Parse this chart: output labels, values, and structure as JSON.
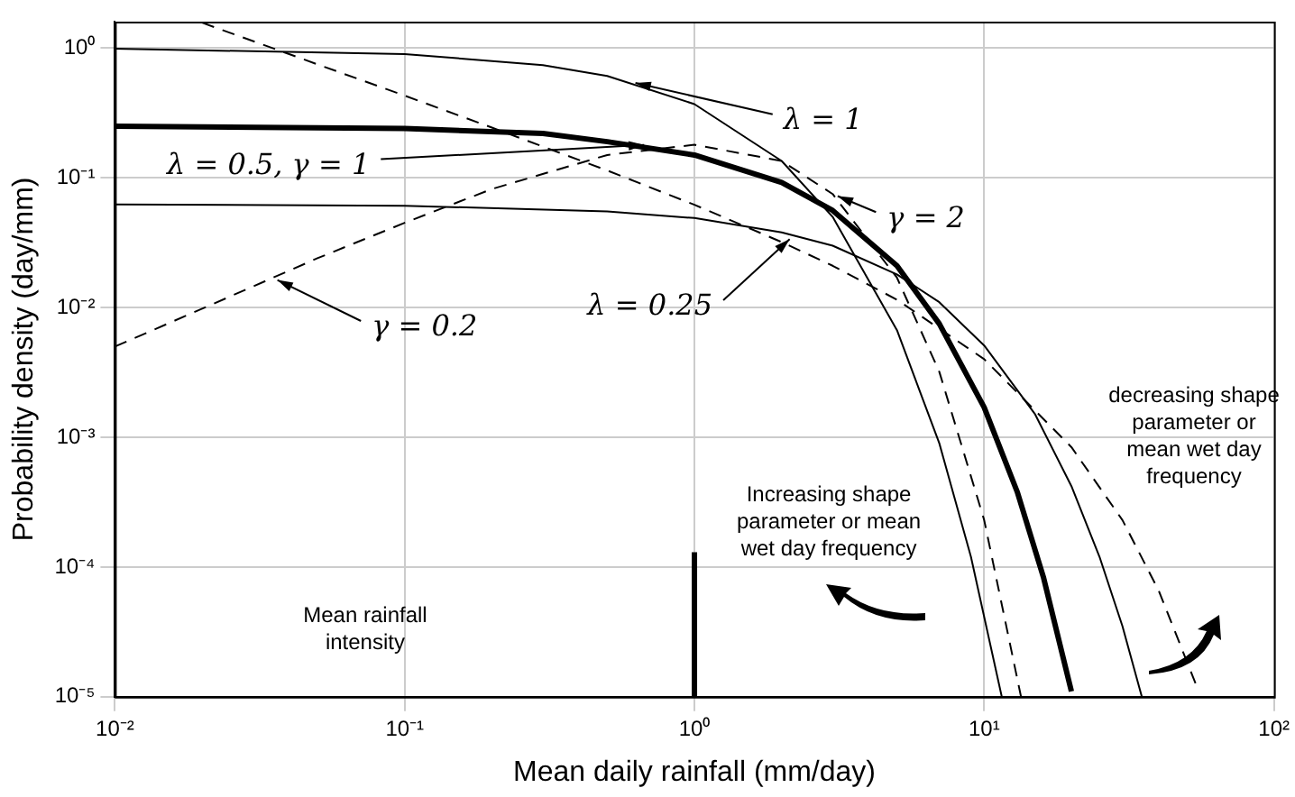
{
  "chart_data": {
    "type": "line",
    "xlabel": "Mean daily rainfall (mm/day)",
    "ylabel": "Probability density (day/mm)",
    "log": "xy",
    "grid": true,
    "legend": false,
    "marker": "none",
    "xlim": [
      0.01,
      100
    ],
    "ylim": [
      1e-05,
      1.6
    ],
    "xticks": [
      {
        "value": 0.01,
        "label": "10⁻²"
      },
      {
        "value": 0.1,
        "label": "10⁻¹"
      },
      {
        "value": 1,
        "label": "10⁰"
      },
      {
        "value": 10,
        "label": "10¹"
      },
      {
        "value": 100,
        "label": "10²"
      }
    ],
    "yticks": [
      {
        "value": 1e-05,
        "label": "10⁻⁵"
      },
      {
        "value": 0.0001,
        "label": "10⁻⁴"
      },
      {
        "value": 0.001,
        "label": "10⁻³"
      },
      {
        "value": 0.01,
        "label": "10⁻²"
      },
      {
        "value": 0.1,
        "label": "10⁻¹"
      },
      {
        "value": 1,
        "label": "10⁰"
      }
    ],
    "series": [
      {
        "color": "#000000",
        "line_style": "solid",
        "x": [
          0.01,
          0.1,
          0.3,
          0.5,
          1,
          2,
          3,
          5,
          7,
          9,
          11.5
        ],
        "values": [
          0.99,
          0.9,
          0.74,
          0.61,
          0.37,
          0.135,
          0.05,
          0.0067,
          0.0009,
          0.00012,
          1e-05
        ]
      },
      {
        "color": "#000000",
        "line_style": "solid",
        "x": [
          0.01,
          0.1,
          0.3,
          0.5,
          1,
          2,
          3,
          5,
          7,
          10,
          13,
          16,
          20
        ],
        "values": [
          0.25,
          0.24,
          0.22,
          0.19,
          0.15,
          0.092,
          0.056,
          0.021,
          0.0075,
          0.0017,
          0.00038,
          8.4e-05,
          1.1e-05
        ]
      },
      {
        "color": "#000000",
        "line_style": "solid",
        "x": [
          0.01,
          0.1,
          0.5,
          1,
          2,
          3,
          5,
          7,
          10,
          15,
          20,
          25,
          30,
          35
        ],
        "values": [
          0.0625,
          0.061,
          0.055,
          0.049,
          0.038,
          0.03,
          0.018,
          0.011,
          0.0051,
          0.0015,
          0.00042,
          0.00012,
          3.5e-05,
          1e-05
        ]
      },
      {
        "color": "#000000",
        "line_style": "dashed",
        "x": [
          0.01,
          0.02,
          0.05,
          0.1,
          0.2,
          0.5,
          1,
          2,
          3,
          5,
          7,
          10,
          13.4
        ],
        "values": [
          0.005,
          0.0098,
          0.024,
          0.045,
          0.082,
          0.15,
          0.18,
          0.135,
          0.075,
          0.017,
          0.0032,
          0.00023,
          1e-05
        ]
      },
      {
        "color": "#000000",
        "line_style": "dashed",
        "x": [
          0.02,
          0.05,
          0.1,
          0.2,
          0.5,
          1,
          2,
          3,
          5,
          10,
          20,
          30,
          40,
          55
        ],
        "values": [
          1.57,
          0.75,
          0.43,
          0.244,
          0.114,
          0.062,
          0.032,
          0.021,
          0.0115,
          0.004,
          0.00084,
          0.00023,
          6.6e-05,
          1.1e-05
        ]
      },
      {
        "color": "#000000",
        "line_style": "solid",
        "x": [
          1,
          1
        ],
        "values": [
          1e-05,
          0.00013
        ]
      }
    ],
    "annotations": [
      {
        "text": "λ = 1",
        "x": 0.6,
        "y": 0.55
      },
      {
        "text": "λ = 0.5, γ = 1",
        "x": 0.7,
        "y": 0.18
      },
      {
        "text": "γ = 2",
        "x": 3,
        "y": 0.075
      },
      {
        "text": "λ = 0.25",
        "x": 2.2,
        "y": 0.036
      },
      {
        "text": "γ = 0.2",
        "x": 0.035,
        "y": 0.017
      },
      "Increasing shape parameter or mean wet day frequency",
      "decreasing shape parameter or mean wet day frequency",
      "Mean rainfall intensity"
    ]
  }
}
